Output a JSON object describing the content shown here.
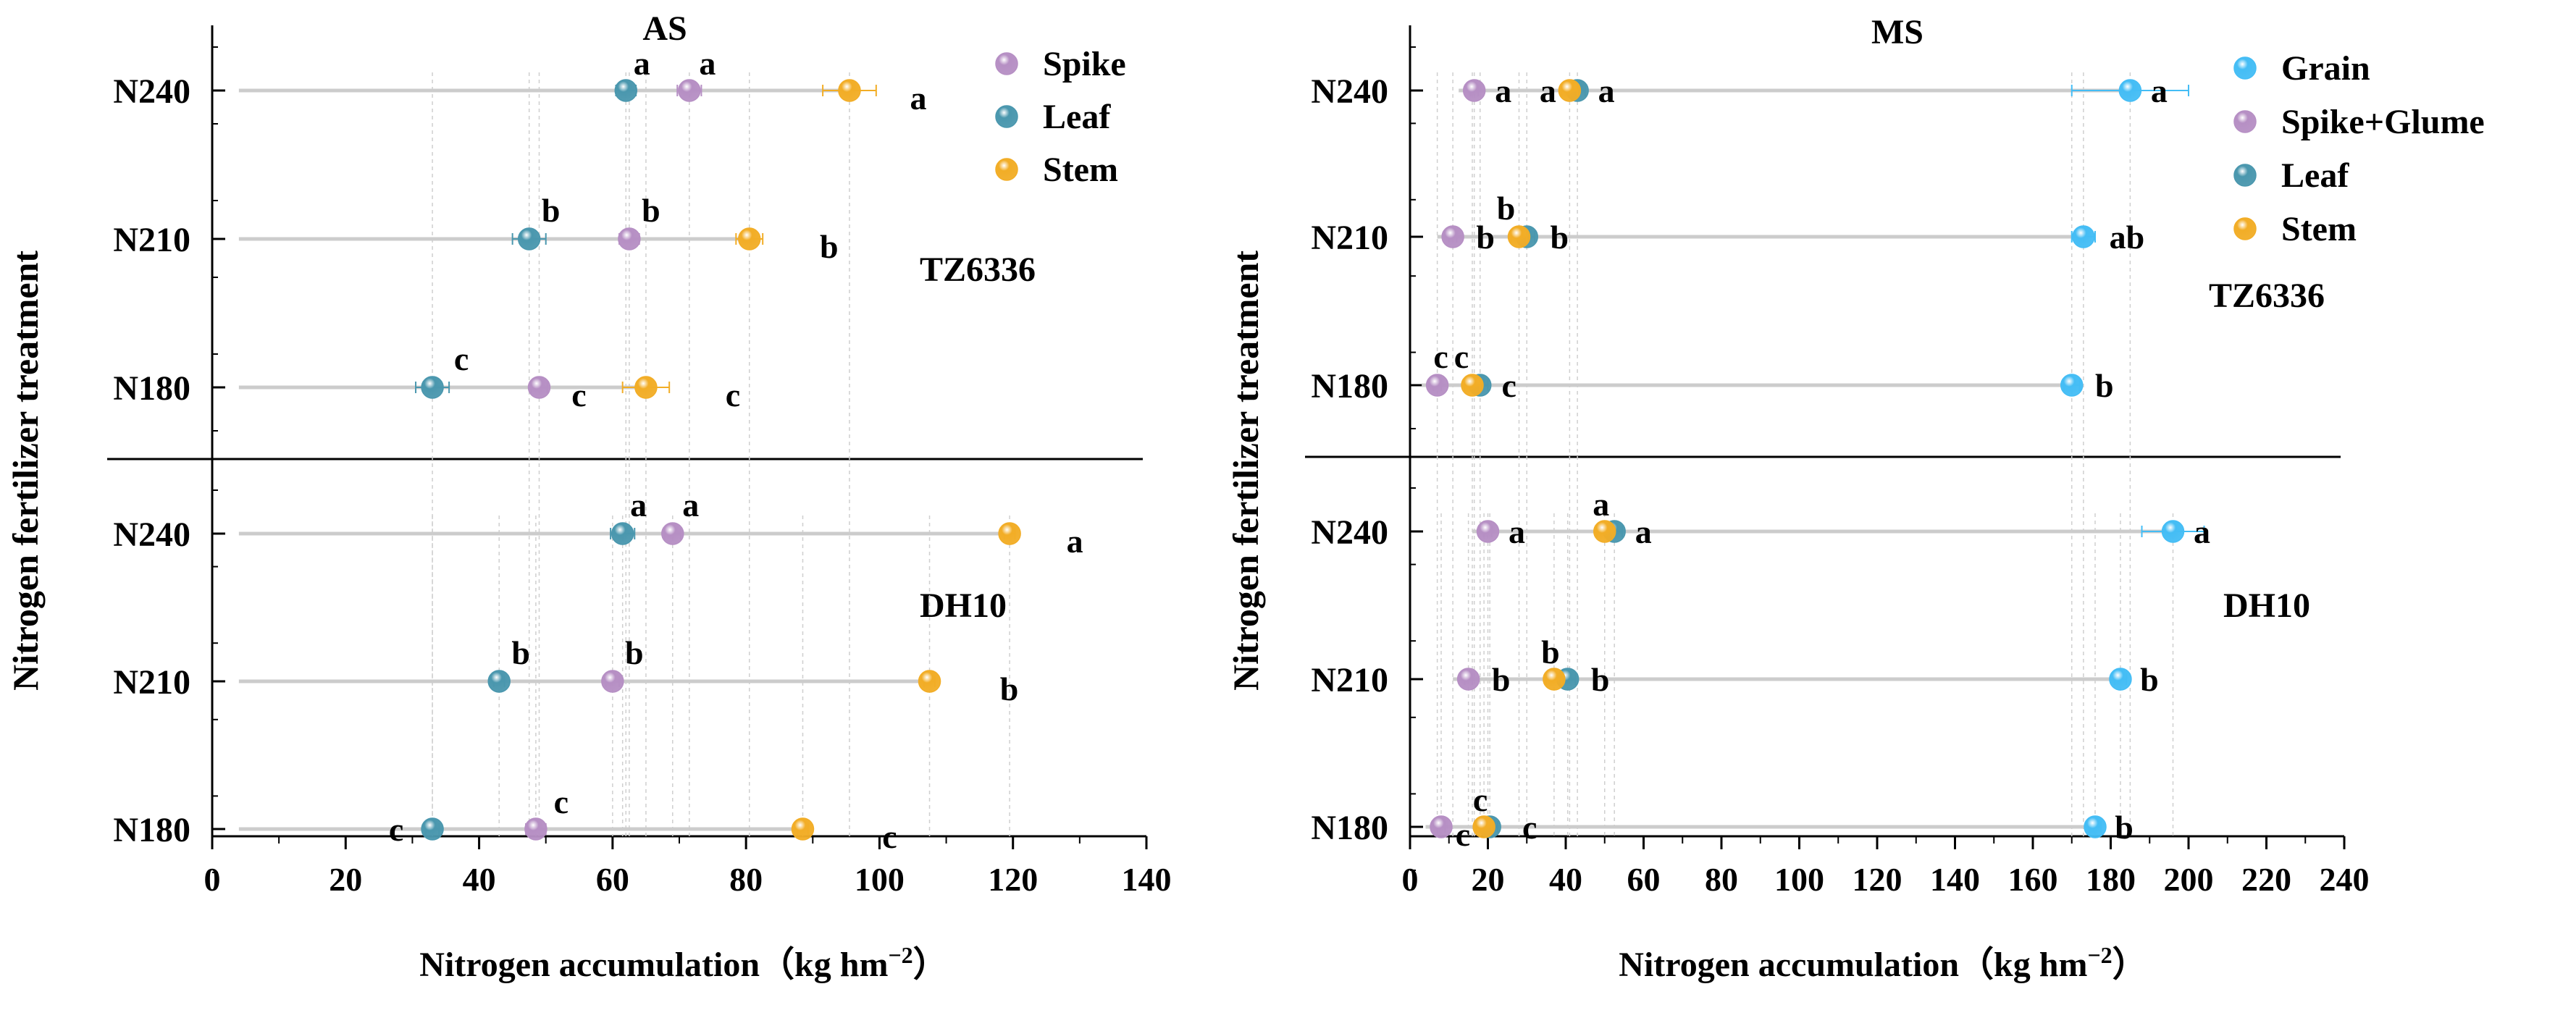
{
  "figure": {
    "y_label": "Nitrogen fertilizer treatment",
    "x_label": "Nitrogen accumulation（kg hm",
    "x_label_exp": "−2",
    "x_label_close": "）",
    "colors": {
      "Grain": "#44bdf5",
      "Spike": "#b68fc4",
      "Spike+Glume": "#b68fc4",
      "Leaf": "#4a97ae",
      "Stem": "#f2ad26",
      "line": "#cccccc",
      "guide": "#cfcfcf"
    }
  },
  "chart_data": [
    {
      "type": "dot",
      "title": "AS",
      "xlim": [
        0,
        140
      ],
      "x_ticks": [
        "0",
        "20",
        "40",
        "60",
        "80",
        "100",
        "120",
        "140"
      ],
      "legend": [
        "Spike",
        "Leaf",
        "Stem"
      ],
      "legend_position": "top-right",
      "panels": [
        {
          "cultivar": "TZ6336",
          "categories": [
            "N240",
            "N210",
            "N180"
          ],
          "series": [
            {
              "name": "Spike",
              "values": [
                71.5,
                62.5,
                49
              ],
              "errors": [
                1.8,
                1.5,
                1.2
              ],
              "letters": [
                "a",
                "b",
                "c"
              ]
            },
            {
              "name": "Leaf",
              "values": [
                62,
                47.5,
                33
              ],
              "errors": [
                1.5,
                2.5,
                2.5
              ],
              "letters": [
                "a",
                "b",
                "c"
              ]
            },
            {
              "name": "Stem",
              "values": [
                95.5,
                80.5,
                65
              ],
              "errors": [
                4,
                2,
                3.5
              ],
              "letters": [
                "a",
                "b",
                "c"
              ]
            }
          ]
        },
        {
          "cultivar": "DH10",
          "categories": [
            "N240",
            "N210",
            "N180"
          ],
          "series": [
            {
              "name": "Spike",
              "values": [
                69,
                60,
                48.5
              ],
              "errors": [
                1.2,
                1,
                1.5
              ],
              "letters": [
                "a",
                "b",
                "c"
              ]
            },
            {
              "name": "Leaf",
              "values": [
                61.5,
                43,
                33
              ],
              "errors": [
                1.8,
                0.8,
                1
              ],
              "letters": [
                "a",
                "b",
                "c"
              ]
            },
            {
              "name": "Stem",
              "values": [
                119.5,
                107.5,
                88.5
              ],
              "errors": [
                0.8,
                0.8,
                0.8
              ],
              "letters": [
                "a",
                "b",
                "c"
              ]
            }
          ]
        }
      ]
    },
    {
      "type": "dot",
      "title": "MS",
      "xlim": [
        0,
        240
      ],
      "x_ticks": [
        "0",
        "20",
        "40",
        "60",
        "80",
        "100",
        "120",
        "140",
        "160",
        "180",
        "200",
        "220",
        "240"
      ],
      "legend": [
        "Grain",
        "Spike+Glume",
        "Leaf",
        "Stem"
      ],
      "legend_position": "top-right",
      "panels": [
        {
          "cultivar": "TZ6336",
          "categories": [
            "N240",
            "N210",
            "N180"
          ],
          "series": [
            {
              "name": "Grain",
              "values": [
                185,
                173,
                170
              ],
              "errors": [
                15,
                3,
                2
              ],
              "letters": [
                "a",
                "ab",
                "b"
              ]
            },
            {
              "name": "Spike+Glume",
              "values": [
                16.5,
                11,
                7
              ],
              "errors": [
                1,
                1,
                1
              ],
              "letters": [
                "a",
                "b",
                "c"
              ]
            },
            {
              "name": "Leaf",
              "values": [
                43,
                30,
                18
              ],
              "errors": [
                2,
                2,
                2
              ],
              "letters": [
                "a",
                "b",
                "c"
              ]
            },
            {
              "name": "Stem",
              "values": [
                41,
                28,
                16
              ],
              "errors": [
                2,
                2,
                2
              ],
              "letters": [
                "a",
                "b",
                "c"
              ]
            }
          ]
        },
        {
          "cultivar": "DH10",
          "categories": [
            "N240",
            "N210",
            "N180"
          ],
          "series": [
            {
              "name": "Grain",
              "values": [
                196,
                182.5,
                176
              ],
              "errors": [
                8,
                1.5,
                1.5
              ],
              "letters": [
                "a",
                "b",
                "b"
              ]
            },
            {
              "name": "Spike+Glume",
              "values": [
                20,
                15,
                8
              ],
              "errors": [
                1,
                1,
                1
              ],
              "letters": [
                "a",
                "b",
                "c"
              ]
            },
            {
              "name": "Leaf",
              "values": [
                52.5,
                40.5,
                20.5
              ],
              "errors": [
                2,
                2,
                2
              ],
              "letters": [
                "a",
                "b",
                "c"
              ]
            },
            {
              "name": "Stem",
              "values": [
                50,
                37,
                19
              ],
              "errors": [
                2,
                2,
                2
              ],
              "letters": [
                "a",
                "b",
                "c"
              ]
            }
          ]
        }
      ]
    }
  ]
}
